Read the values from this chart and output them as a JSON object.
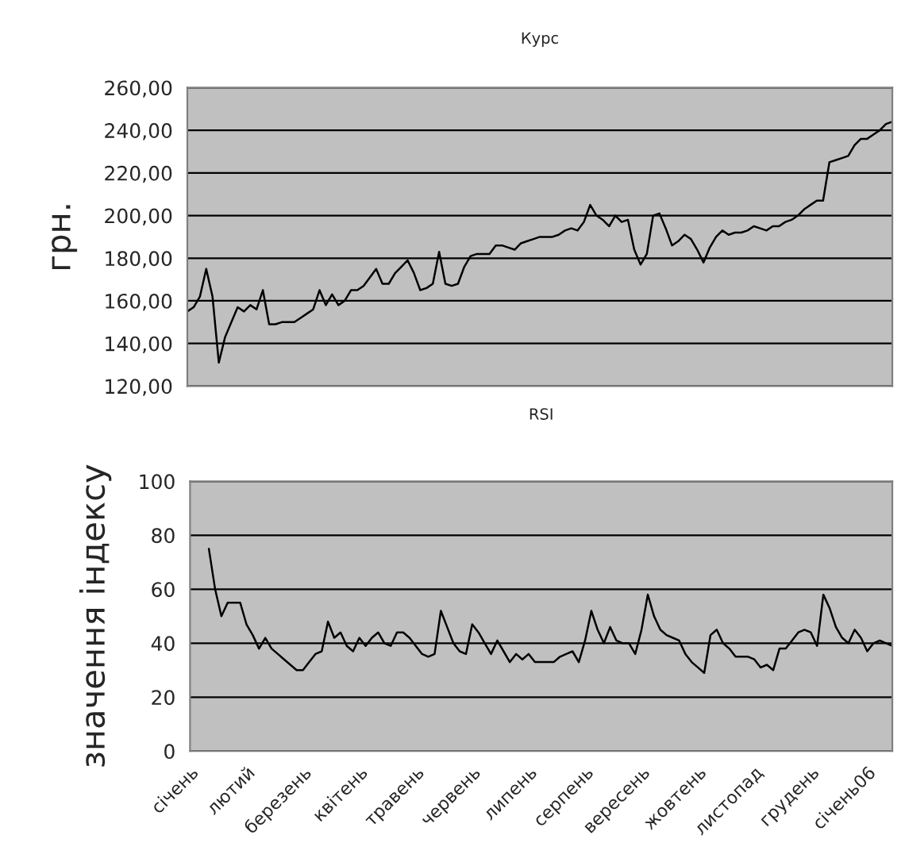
{
  "chart_data": [
    {
      "type": "line",
      "title": "Курс",
      "ylabel": "грн.",
      "categories": [
        null,
        null,
        null,
        null,
        null,
        null,
        null,
        null,
        null,
        null,
        null,
        null,
        null,
        null,
        null,
        null,
        null,
        null,
        null,
        null,
        null,
        null,
        null,
        null,
        null,
        null,
        null,
        null,
        null,
        null,
        null,
        null,
        null,
        null,
        null,
        null,
        null,
        null,
        null,
        null,
        null,
        null,
        null,
        null,
        null,
        null,
        null,
        null,
        null,
        null,
        null,
        null,
        null,
        null,
        null,
        null,
        null,
        null,
        null,
        null,
        null,
        null,
        null,
        null,
        null,
        null,
        null,
        null,
        null,
        null,
        null,
        null,
        null,
        null,
        null,
        null,
        null,
        null,
        null,
        null,
        null,
        null,
        null,
        null,
        null,
        null,
        null,
        null,
        null,
        null,
        null,
        null,
        null,
        null,
        null,
        null,
        null,
        null,
        null,
        null,
        null,
        null,
        null,
        null,
        null,
        null,
        null,
        null,
        null,
        null,
        null,
        null,
        null
      ],
      "series": [
        {
          "color": "#000000",
          "values": [
            155,
            157,
            162,
            175,
            162,
            131,
            143,
            150,
            157,
            155,
            158,
            156,
            165,
            149,
            149,
            150,
            150,
            150,
            152,
            154,
            156,
            165,
            158,
            163,
            158,
            160,
            165,
            165,
            167,
            171,
            175,
            168,
            168,
            173,
            176,
            179,
            173,
            165,
            166,
            168,
            183,
            168,
            167,
            168,
            176,
            181,
            182,
            182,
            182,
            186,
            186,
            185,
            184,
            187,
            188,
            189,
            190,
            190,
            190,
            191,
            193,
            194,
            193,
            197,
            205,
            200,
            198,
            195,
            200,
            197,
            198,
            184,
            177,
            182,
            200,
            201,
            194,
            186,
            188,
            191,
            189,
            184,
            178,
            185,
            190,
            193,
            191,
            192,
            192,
            193,
            195,
            194,
            193,
            195,
            195,
            197,
            198,
            200,
            203,
            205,
            207,
            207,
            225,
            226,
            227,
            228,
            233,
            236,
            236,
            238,
            240,
            243,
            244
          ]
        }
      ],
      "ylim": [
        120,
        260
      ],
      "yticks": [
        {
          "value": 120,
          "label": "120,00"
        },
        {
          "value": 140,
          "label": "140,00"
        },
        {
          "value": 160,
          "label": "160,00"
        },
        {
          "value": 180,
          "label": "180,00"
        },
        {
          "value": 200,
          "label": "200,00"
        },
        {
          "value": 220,
          "label": "220,00"
        },
        {
          "value": 240,
          "label": "240,00"
        },
        {
          "value": 260,
          "label": "260,00"
        }
      ],
      "grid": "y",
      "tick_labels": "y",
      "marker": "none",
      "line_style": "solid"
    },
    {
      "type": "line",
      "title": "RSI",
      "ylabel": "значення індексу",
      "categories": [
        "січень",
        null,
        null,
        null,
        null,
        null,
        null,
        null,
        null,
        "лютий",
        null,
        null,
        null,
        null,
        null,
        null,
        null,
        null,
        "березень",
        null,
        null,
        null,
        null,
        null,
        null,
        null,
        null,
        "квітень",
        null,
        null,
        null,
        null,
        null,
        null,
        null,
        null,
        "травень",
        null,
        null,
        null,
        null,
        null,
        null,
        null,
        null,
        "червень",
        null,
        null,
        null,
        null,
        null,
        null,
        null,
        null,
        "липень",
        null,
        null,
        null,
        null,
        null,
        null,
        null,
        null,
        "серпень",
        null,
        null,
        null,
        null,
        null,
        null,
        null,
        null,
        "вересень",
        null,
        null,
        null,
        null,
        null,
        null,
        null,
        null,
        "жовтень",
        null,
        null,
        null,
        null,
        null,
        null,
        null,
        null,
        "листопад",
        null,
        null,
        null,
        null,
        null,
        null,
        null,
        null,
        "грудень",
        null,
        null,
        null,
        null,
        null,
        null,
        null,
        null,
        "січень06",
        null,
        null,
        null,
        null
      ],
      "series": [
        {
          "color": "#000000",
          "values": [
            null,
            null,
            null,
            75,
            60,
            50,
            55,
            55,
            55,
            47,
            43,
            38,
            42,
            38,
            36,
            34,
            32,
            30,
            30,
            33,
            36,
            37,
            48,
            42,
            44,
            39,
            37,
            42,
            39,
            42,
            44,
            40,
            39,
            44,
            44,
            42,
            39,
            36,
            35,
            36,
            52,
            46,
            40,
            37,
            36,
            47,
            44,
            40,
            36,
            41,
            37,
            33,
            36,
            34,
            36,
            33,
            33,
            33,
            33,
            35,
            36,
            37,
            33,
            41,
            52,
            45,
            40,
            46,
            41,
            40,
            40,
            36,
            45,
            58,
            50,
            45,
            43,
            42,
            41,
            36,
            33,
            31,
            29,
            43,
            45,
            40,
            38,
            35,
            35,
            35,
            34,
            31,
            32,
            30,
            38,
            38,
            41,
            44,
            45,
            44,
            39,
            58,
            53,
            46,
            42,
            40,
            45,
            42,
            37,
            40,
            41,
            40,
            39
          ]
        }
      ],
      "ylim": [
        0,
        100
      ],
      "yticks": [
        0,
        20,
        40,
        60,
        80,
        100
      ],
      "grid": "y",
      "marker": "none",
      "line_style": "solid"
    }
  ]
}
